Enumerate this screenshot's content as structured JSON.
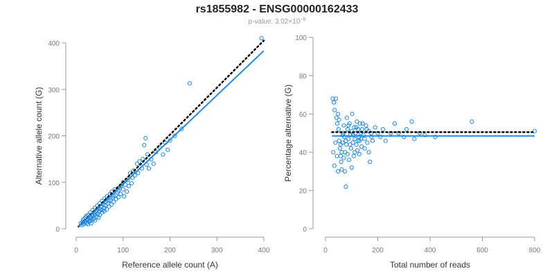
{
  "title": "rs1855982 - ENSG00000162433",
  "subtitle_prefix": "p-value: 3.02×10",
  "subtitle_exp": "−8",
  "colors": {
    "points": "#1e88e5",
    "fit": "#1e88e5",
    "ref": "#000000",
    "axis": "#999999",
    "text": "#333333"
  },
  "chart_data": [
    {
      "type": "scatter",
      "name": "left-panel",
      "xlabel": "Reference allele count (A)",
      "ylabel": "Alternative allele count (G)",
      "xlim": [
        0,
        400
      ],
      "ylim": [
        0,
        400
      ],
      "xticks": [
        "0",
        "100",
        "200",
        "300",
        "400"
      ],
      "yticks": [
        "0",
        "100",
        "200",
        "300",
        "400"
      ],
      "fit_line": {
        "x": [
          5,
          400
        ],
        "y": [
          5,
          383
        ]
      },
      "ref_line": {
        "x": [
          5,
          400
        ],
        "y": [
          5,
          405
        ]
      },
      "points": [
        [
          10,
          12
        ],
        [
          12,
          8
        ],
        [
          14,
          15
        ],
        [
          15,
          20
        ],
        [
          16,
          10
        ],
        [
          18,
          22
        ],
        [
          18,
          14
        ],
        [
          20,
          16
        ],
        [
          20,
          25
        ],
        [
          22,
          12
        ],
        [
          22,
          28
        ],
        [
          24,
          18
        ],
        [
          25,
          20
        ],
        [
          25,
          10
        ],
        [
          26,
          30
        ],
        [
          28,
          22
        ],
        [
          28,
          15
        ],
        [
          30,
          26
        ],
        [
          30,
          35
        ],
        [
          30,
          18
        ],
        [
          32,
          24
        ],
        [
          32,
          12
        ],
        [
          34,
          30
        ],
        [
          35,
          40
        ],
        [
          35,
          20
        ],
        [
          36,
          28
        ],
        [
          38,
          34
        ],
        [
          38,
          22
        ],
        [
          40,
          30
        ],
        [
          40,
          45
        ],
        [
          40,
          18
        ],
        [
          42,
          36
        ],
        [
          44,
          40
        ],
        [
          44,
          26
        ],
        [
          45,
          50
        ],
        [
          46,
          32
        ],
        [
          48,
          44
        ],
        [
          48,
          24
        ],
        [
          50,
          38
        ],
        [
          50,
          55
        ],
        [
          50,
          30
        ],
        [
          52,
          42
        ],
        [
          54,
          48
        ],
        [
          55,
          35
        ],
        [
          55,
          60
        ],
        [
          56,
          40
        ],
        [
          58,
          52
        ],
        [
          60,
          45
        ],
        [
          60,
          65
        ],
        [
          60,
          38
        ],
        [
          62,
          50
        ],
        [
          64,
          58
        ],
        [
          65,
          42
        ],
        [
          66,
          70
        ],
        [
          68,
          55
        ],
        [
          70,
          60
        ],
        [
          70,
          48
        ],
        [
          72,
          75
        ],
        [
          74,
          62
        ],
        [
          75,
          52
        ],
        [
          76,
          80
        ],
        [
          78,
          66
        ],
        [
          80,
          70
        ],
        [
          80,
          58
        ],
        [
          82,
          85
        ],
        [
          84,
          72
        ],
        [
          85,
          64
        ],
        [
          88,
          78
        ],
        [
          90,
          82
        ],
        [
          90,
          68
        ],
        [
          92,
          88
        ],
        [
          95,
          75
        ],
        [
          96,
          92
        ],
        [
          100,
          85
        ],
        [
          100,
          100
        ],
        [
          102,
          70
        ],
        [
          105,
          95
        ],
        [
          108,
          80
        ],
        [
          110,
          105
        ],
        [
          112,
          92
        ],
        [
          115,
          120
        ],
        [
          118,
          98
        ],
        [
          120,
          110
        ],
        [
          122,
          125
        ],
        [
          125,
          115
        ],
        [
          130,
          140
        ],
        [
          132,
          120
        ],
        [
          135,
          145
        ],
        [
          140,
          130
        ],
        [
          142,
          150
        ],
        [
          145,
          180
        ],
        [
          148,
          195
        ],
        [
          150,
          138
        ],
        [
          152,
          160
        ],
        [
          155,
          130
        ],
        [
          160,
          150
        ],
        [
          165,
          140
        ],
        [
          170,
          165
        ],
        [
          178,
          175
        ],
        [
          185,
          160
        ],
        [
          190,
          185
        ],
        [
          195,
          170
        ],
        [
          200,
          190
        ],
        [
          210,
          200
        ],
        [
          225,
          215
        ],
        [
          242,
          313
        ],
        [
          395,
          410
        ]
      ]
    },
    {
      "type": "scatter",
      "name": "right-panel",
      "xlabel": "Total number of reads",
      "ylabel": "Percentage alternative (G)",
      "xlim": [
        0,
        800
      ],
      "ylim": [
        0,
        100
      ],
      "xticks": [
        "0",
        "200",
        "400",
        "600",
        "800"
      ],
      "yticks": [
        "0",
        "20",
        "40",
        "60",
        "80",
        "100"
      ],
      "fit_line": {
        "x": [
          25,
          800
        ],
        "y": [
          48.5,
          48.5
        ]
      },
      "ref_line": {
        "x": [
          25,
          800
        ],
        "y": [
          50.5,
          50.5
        ]
      },
      "points": [
        [
          28,
          68
        ],
        [
          32,
          66
        ],
        [
          35,
          62
        ],
        [
          40,
          68
        ],
        [
          42,
          58
        ],
        [
          45,
          55
        ],
        [
          48,
          60
        ],
        [
          50,
          52
        ],
        [
          52,
          46
        ],
        [
          55,
          42
        ],
        [
          58,
          38
        ],
        [
          60,
          35
        ],
        [
          62,
          31
        ],
        [
          65,
          45
        ],
        [
          68,
          50
        ],
        [
          70,
          54
        ],
        [
          72,
          48
        ],
        [
          75,
          40
        ],
        [
          78,
          22
        ],
        [
          80,
          44
        ],
        [
          82,
          58
        ],
        [
          85,
          52
        ],
        [
          88,
          47
        ],
        [
          90,
          36
        ],
        [
          92,
          55
        ],
        [
          95,
          49
        ],
        [
          98,
          42
        ],
        [
          100,
          51
        ],
        [
          102,
          60
        ],
        [
          105,
          45
        ],
        [
          108,
          38
        ],
        [
          110,
          53
        ],
        [
          112,
          47
        ],
        [
          115,
          50
        ],
        [
          118,
          44
        ],
        [
          120,
          56
        ],
        [
          122,
          41
        ],
        [
          125,
          52
        ],
        [
          128,
          48
        ],
        [
          130,
          46
        ],
        [
          132,
          55
        ],
        [
          135,
          50
        ],
        [
          138,
          43
        ],
        [
          140,
          52
        ],
        [
          145,
          49
        ],
        [
          150,
          47
        ],
        [
          155,
          54
        ],
        [
          160,
          45
        ],
        [
          165,
          51
        ],
        [
          170,
          35
        ],
        [
          175,
          50
        ],
        [
          180,
          46
        ],
        [
          190,
          53
        ],
        [
          200,
          50
        ],
        [
          210,
          48
        ],
        [
          220,
          52
        ],
        [
          230,
          46
        ],
        [
          250,
          50
        ],
        [
          265,
          55
        ],
        [
          280,
          50
        ],
        [
          300,
          48
        ],
        [
          310,
          52
        ],
        [
          330,
          56
        ],
        [
          340,
          47
        ],
        [
          360,
          50
        ],
        [
          380,
          49
        ],
        [
          420,
          48
        ],
        [
          560,
          56
        ],
        [
          800,
          51
        ],
        [
          30,
          40
        ],
        [
          34,
          33
        ],
        [
          38,
          45
        ],
        [
          44,
          38
        ],
        [
          48,
          30
        ],
        [
          52,
          57
        ],
        [
          58,
          44
        ],
        [
          62,
          40
        ],
        [
          66,
          49
        ],
        [
          70,
          37
        ],
        [
          74,
          30
        ],
        [
          78,
          46
        ],
        [
          84,
          39
        ],
        [
          88,
          54
        ],
        [
          94,
          44
        ],
        [
          100,
          32
        ],
        [
          106,
          49
        ],
        [
          112,
          40
        ],
        [
          118,
          53
        ],
        [
          124,
          46
        ],
        [
          130,
          39
        ],
        [
          136,
          47
        ],
        [
          142,
          55
        ],
        [
          150,
          42
        ],
        [
          158,
          52
        ],
        [
          166,
          40
        ],
        [
          176,
          48
        ]
      ]
    }
  ]
}
